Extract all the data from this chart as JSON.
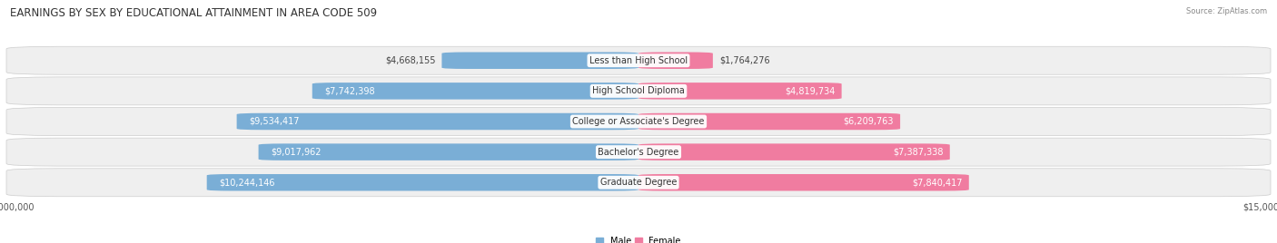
{
  "title": "EARNINGS BY SEX BY EDUCATIONAL ATTAINMENT IN AREA CODE 509",
  "source": "Source: ZipAtlas.com",
  "categories": [
    "Less than High School",
    "High School Diploma",
    "College or Associate's Degree",
    "Bachelor's Degree",
    "Graduate Degree"
  ],
  "male_values": [
    4668155,
    7742398,
    9534417,
    9017962,
    10244146
  ],
  "female_values": [
    1764276,
    4819734,
    6209763,
    7387338,
    7840417
  ],
  "male_labels": [
    "$4,668,155",
    "$7,742,398",
    "$9,534,417",
    "$9,017,962",
    "$10,244,146"
  ],
  "female_labels": [
    "$1,764,276",
    "$4,819,734",
    "$6,209,763",
    "$7,387,338",
    "$7,840,417"
  ],
  "max_value": 15000000,
  "x_tick_label": "$15,000,000",
  "male_color": "#7aaed6",
  "female_color": "#f07ca0",
  "row_bg_color": "#efefef",
  "row_bg_outer": "#ffffff",
  "title_fontsize": 8.5,
  "label_fontsize": 7,
  "category_fontsize": 7,
  "tick_fontsize": 7,
  "bar_height": 0.55,
  "figsize": [
    14.06,
    2.68
  ],
  "dpi": 100
}
